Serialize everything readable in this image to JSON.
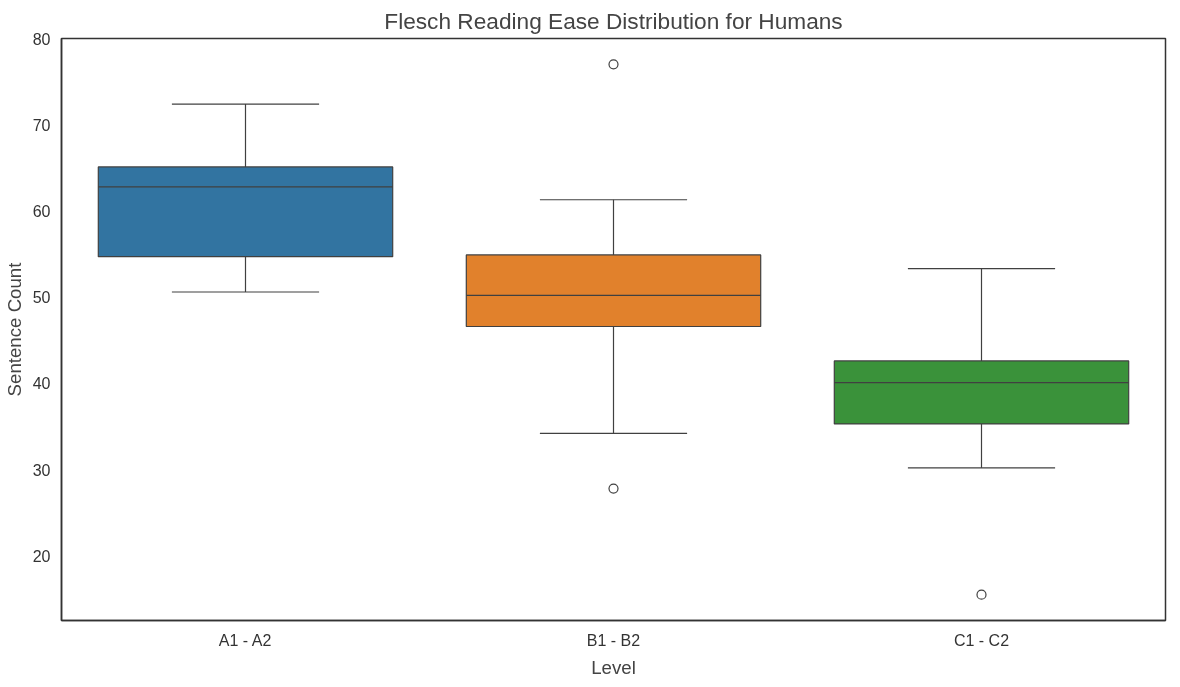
{
  "chart_data": {
    "type": "box",
    "title": "Flesch Reading Ease Distribution for Humans",
    "xlabel": "Level",
    "ylabel": "Sentence Count",
    "categories": [
      "A1 - A2",
      "B1 - B2",
      "C1 - C2"
    ],
    "colors": [
      "#3274a1",
      "#e1812c",
      "#3a923a"
    ],
    "boxes": [
      {
        "low": 50.6,
        "q1": 54.7,
        "median": 62.8,
        "q3": 65.1,
        "high": 72.4
      },
      {
        "low": 34.2,
        "q1": 46.6,
        "median": 50.2,
        "q3": 54.9,
        "high": 61.3,
        "outliers": [
          77.0,
          27.8
        ]
      },
      {
        "low": 30.2,
        "q1": 35.3,
        "median": 40.1,
        "q3": 42.6,
        "high": 53.3,
        "outliers": [
          15.5
        ]
      }
    ],
    "ylim": [
      12.5,
      80
    ],
    "yticks": [
      20,
      30,
      40,
      50,
      60,
      70,
      80
    ],
    "grid": false
  }
}
